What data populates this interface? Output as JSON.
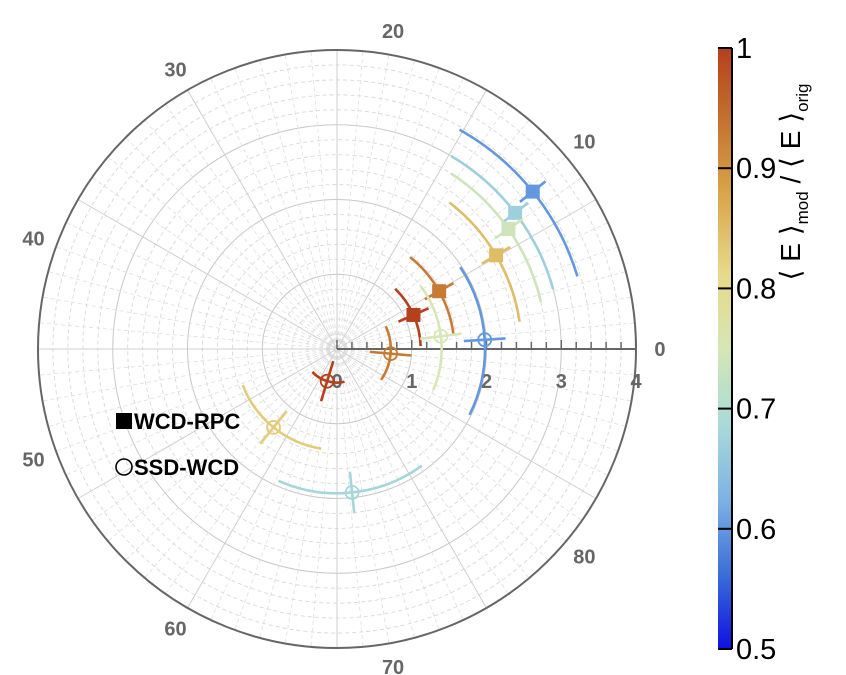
{
  "chart_data": {
    "type": "polar-scatter",
    "angular_ticks": [
      "0",
      "10",
      "20",
      "30",
      "40",
      "50",
      "60",
      "70",
      "80"
    ],
    "radial_ticks": [
      "0",
      "1",
      "2",
      "3",
      "4"
    ],
    "radial_range": [
      0,
      4
    ],
    "grid": true,
    "legend": {
      "position": "left",
      "entries": [
        {
          "marker": "filled-square",
          "label": "WCD-RPC"
        },
        {
          "marker": "open-circle",
          "label": "SSD-WCD"
        }
      ]
    },
    "colorbar": {
      "title": "⟨ E ⟩mod / ⟨ E ⟩orig",
      "range": [
        0.5,
        1
      ],
      "ticks": [
        "0.5",
        "0.6",
        "0.7",
        "0.8",
        "0.9",
        "1"
      ],
      "colors": [
        "#1010e0",
        "#3a6fd8",
        "#7fb2e3",
        "#a9dbd9",
        "#d6e6b4",
        "#e7d98a",
        "#d9a84e",
        "#c5742f",
        "#b5401c"
      ]
    },
    "series": [
      {
        "name": "WCD-RPC",
        "marker": "square",
        "points": [
          {
            "theta": 38.8,
            "r": 3.36,
            "value": 0.6
          },
          {
            "theta": 37.4,
            "r": 3.0,
            "value": 0.67
          },
          {
            "theta": 35.0,
            "r": 2.8,
            "value": 0.74
          },
          {
            "theta": 30.5,
            "r": 2.47,
            "value": 0.85
          },
          {
            "theta": 29.5,
            "r": 1.57,
            "value": 0.93
          },
          {
            "theta": 24.0,
            "r": 1.12,
            "value": 1.0
          }
        ]
      },
      {
        "name": "SSD-WCD",
        "marker": "circle",
        "points": [
          {
            "theta": 7.0,
            "r": 1.4,
            "value": 0.75
          },
          {
            "theta": 3.6,
            "r": 1.98,
            "value": 0.6
          },
          {
            "theta": 355.0,
            "r": 0.72,
            "value": 0.93
          },
          {
            "theta": 276.0,
            "r": 1.93,
            "value": 0.68
          },
          {
            "theta": 253.0,
            "r": 0.45,
            "value": 1.0
          },
          {
            "theta": 231.0,
            "r": 1.35,
            "value": 0.83
          }
        ]
      }
    ]
  }
}
